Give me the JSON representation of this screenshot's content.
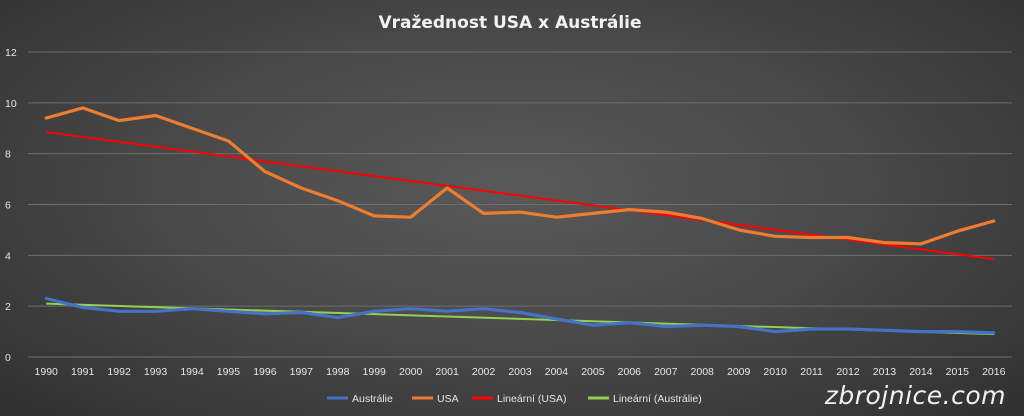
{
  "chart_data": {
    "type": "line",
    "title": "Vražednost USA x Austrálie",
    "xlabel": "",
    "ylabel": "",
    "ylim": [
      0,
      12
    ],
    "yticks": [
      0,
      2,
      4,
      6,
      8,
      10,
      12
    ],
    "grid": true,
    "legend_position": "bottom",
    "categories": [
      "1990",
      "1991",
      "1992",
      "1993",
      "1994",
      "1995",
      "1996",
      "1997",
      "1998",
      "1999",
      "2000",
      "2001",
      "2002",
      "2003",
      "2004",
      "2005",
      "2006",
      "2007",
      "2008",
      "2009",
      "2010",
      "2011",
      "2012",
      "2013",
      "2014",
      "2015",
      "2016"
    ],
    "series": [
      {
        "name": "Austrálie",
        "color": "#4472c4",
        "values": [
          2.3,
          1.95,
          1.8,
          1.8,
          1.9,
          1.8,
          1.7,
          1.75,
          1.55,
          1.8,
          1.9,
          1.8,
          1.9,
          1.75,
          1.5,
          1.25,
          1.35,
          1.2,
          1.25,
          1.2,
          1.0,
          1.1,
          1.1,
          1.05,
          1.0,
          1.0,
          0.95
        ]
      },
      {
        "name": "USA",
        "color": "#ed7d31",
        "values": [
          9.4,
          9.8,
          9.3,
          9.5,
          9.0,
          8.5,
          7.3,
          6.65,
          6.15,
          5.55,
          5.5,
          6.65,
          5.65,
          5.7,
          5.5,
          5.65,
          5.8,
          5.7,
          5.45,
          5.0,
          4.75,
          4.7,
          4.7,
          4.5,
          4.45,
          4.95,
          5.35
        ]
      }
    ],
    "trendlines": [
      {
        "name": "Lineární (USA)",
        "color": "#ff0000",
        "start": 8.85,
        "end": 3.85
      },
      {
        "name": "Lineární (Austrálie)",
        "color": "#92d050",
        "start": 2.1,
        "end": 0.9
      }
    ]
  },
  "watermark": "zbrojnice.com"
}
